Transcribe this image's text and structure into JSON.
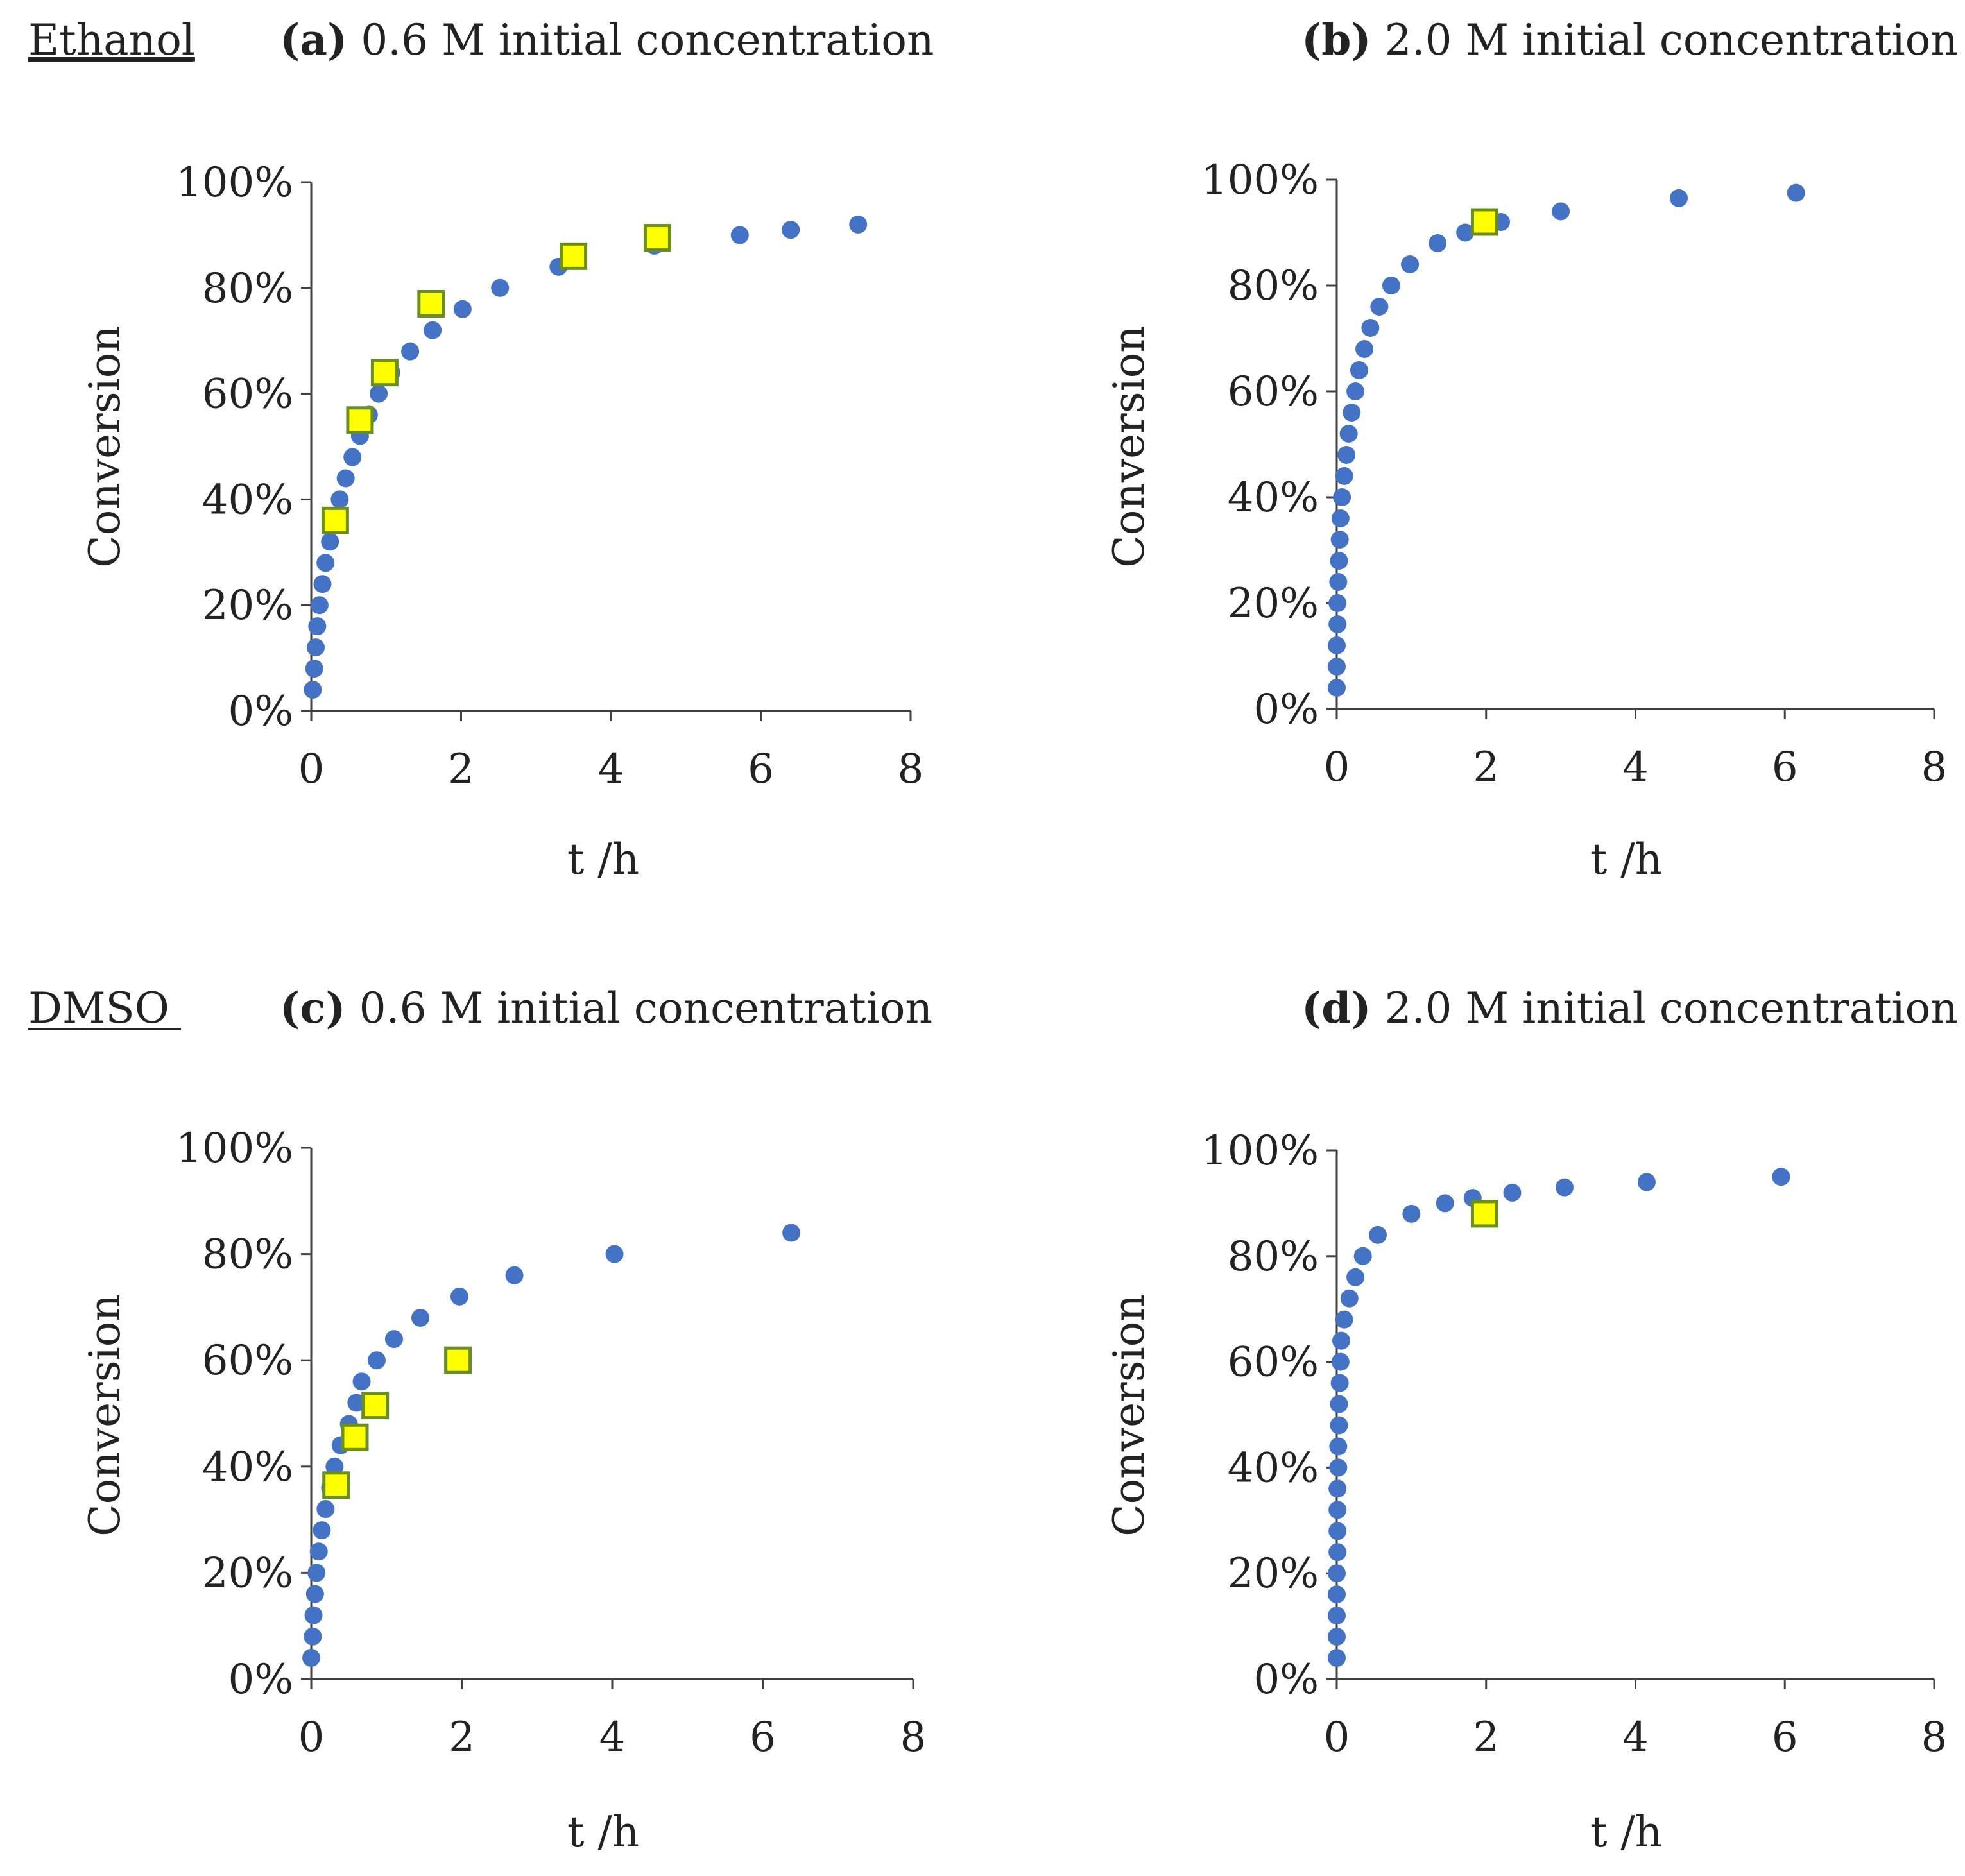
{
  "colors": {
    "model": "#4472C4",
    "experiment_fill": "#FFFF00",
    "experiment_stroke": "#6B8E23",
    "axis": "#404040"
  },
  "legend_semantics": {
    "model_marker": "circle",
    "experiment_marker": "square"
  },
  "rows": [
    {
      "label": "Ethanol"
    },
    {
      "label": "DMSO"
    }
  ],
  "chart_data": [
    {
      "type": "scatter",
      "panel": "a",
      "title_letter": "(a)",
      "title_text": " 0.6 M initial concentration",
      "xlabel": "t /h",
      "ylabel": "Conversion",
      "xlim": [
        0,
        8
      ],
      "ylim": [
        0,
        100
      ],
      "xticks": [
        "0",
        "2",
        "4",
        "6",
        "8"
      ],
      "yticks": [
        "0%",
        "20%",
        "40%",
        "60%",
        "80%",
        "100%"
      ],
      "series": [
        {
          "name": "model",
          "marker": "circle",
          "points": [
            [
              0.02,
              4
            ],
            [
              0.04,
              8
            ],
            [
              0.06,
              12
            ],
            [
              0.08,
              16
            ],
            [
              0.11,
              20
            ],
            [
              0.15,
              24
            ],
            [
              0.19,
              28
            ],
            [
              0.25,
              32
            ],
            [
              0.3,
              36
            ],
            [
              0.38,
              40
            ],
            [
              0.46,
              44
            ],
            [
              0.55,
              48
            ],
            [
              0.65,
              52
            ],
            [
              0.77,
              56
            ],
            [
              0.9,
              60
            ],
            [
              1.07,
              64
            ],
            [
              1.32,
              68
            ],
            [
              1.62,
              72
            ],
            [
              2.02,
              76
            ],
            [
              2.52,
              80
            ],
            [
              3.3,
              84
            ],
            [
              3.52,
              86
            ],
            [
              4.58,
              88
            ],
            [
              5.72,
              90
            ],
            [
              6.4,
              91
            ],
            [
              7.3,
              92
            ]
          ]
        },
        {
          "name": "experiment",
          "marker": "square",
          "points": [
            [
              0.32,
              36
            ],
            [
              0.65,
              55
            ],
            [
              0.98,
              64
            ],
            [
              1.6,
              77
            ],
            [
              3.5,
              86
            ],
            [
              4.62,
              89.5
            ]
          ]
        }
      ]
    },
    {
      "type": "scatter",
      "panel": "b",
      "title_letter": "(b)",
      "title_text": " 2.0 M initial concentration",
      "xlabel": "t /h",
      "ylabel": "Conversion",
      "xlim": [
        0,
        8
      ],
      "ylim": [
        0,
        100
      ],
      "xticks": [
        "0",
        "2",
        "4",
        "6",
        "8"
      ],
      "yticks": [
        "0%",
        "20%",
        "40%",
        "60%",
        "80%",
        "100%"
      ],
      "series": [
        {
          "name": "model",
          "marker": "circle",
          "points": [
            [
              0.0,
              4
            ],
            [
              0.0,
              8
            ],
            [
              0.0,
              12
            ],
            [
              0.01,
              16
            ],
            [
              0.01,
              20
            ],
            [
              0.02,
              24
            ],
            [
              0.03,
              28
            ],
            [
              0.04,
              32
            ],
            [
              0.05,
              36
            ],
            [
              0.07,
              40
            ],
            [
              0.1,
              44
            ],
            [
              0.13,
              48
            ],
            [
              0.16,
              52
            ],
            [
              0.2,
              56
            ],
            [
              0.25,
              60
            ],
            [
              0.3,
              64
            ],
            [
              0.37,
              68
            ],
            [
              0.45,
              72
            ],
            [
              0.57,
              76
            ],
            [
              0.73,
              80
            ],
            [
              0.98,
              84
            ],
            [
              1.35,
              88
            ],
            [
              1.72,
              90
            ],
            [
              2.2,
              92
            ],
            [
              3.0,
              94
            ],
            [
              4.58,
              96.5
            ],
            [
              6.15,
              97.5
            ]
          ]
        },
        {
          "name": "experiment",
          "marker": "square",
          "points": [
            [
              1.98,
              92
            ]
          ]
        }
      ]
    },
    {
      "type": "scatter",
      "panel": "c",
      "title_letter": "(c)",
      "title_text": " 0.6 M initial concentration",
      "xlabel": "t /h",
      "ylabel": "Conversion",
      "xlim": [
        0,
        8
      ],
      "ylim": [
        0,
        100
      ],
      "xticks": [
        "0",
        "2",
        "4",
        "6",
        "8"
      ],
      "yticks": [
        "0%",
        "20%",
        "40%",
        "60%",
        "80%",
        "100%"
      ],
      "series": [
        {
          "name": "model",
          "marker": "circle",
          "points": [
            [
              0.0,
              4
            ],
            [
              0.02,
              8
            ],
            [
              0.03,
              12
            ],
            [
              0.05,
              16
            ],
            [
              0.07,
              20
            ],
            [
              0.1,
              24
            ],
            [
              0.14,
              28
            ],
            [
              0.19,
              32
            ],
            [
              0.25,
              36
            ],
            [
              0.31,
              40
            ],
            [
              0.39,
              44
            ],
            [
              0.5,
              48
            ],
            [
              0.6,
              52
            ],
            [
              0.67,
              56
            ],
            [
              0.87,
              60
            ],
            [
              1.1,
              64
            ],
            [
              1.45,
              68
            ],
            [
              1.97,
              72
            ],
            [
              2.7,
              76
            ],
            [
              4.03,
              80
            ],
            [
              6.38,
              84
            ]
          ]
        },
        {
          "name": "experiment",
          "marker": "square",
          "points": [
            [
              0.33,
              36.5
            ],
            [
              0.58,
              45.5
            ],
            [
              0.85,
              51.5
            ],
            [
              1.95,
              60
            ]
          ]
        }
      ]
    },
    {
      "type": "scatter",
      "panel": "d",
      "title_letter": "(d)",
      "title_text": " 2.0 M initial concentration",
      "xlabel": "t /h",
      "ylabel": "Conversion",
      "xlim": [
        0,
        8
      ],
      "ylim": [
        0,
        100
      ],
      "xticks": [
        "0",
        "2",
        "4",
        "6",
        "8"
      ],
      "yticks": [
        "0%",
        "20%",
        "40%",
        "60%",
        "80%",
        "100%"
      ],
      "series": [
        {
          "name": "model",
          "marker": "circle",
          "points": [
            [
              0.0,
              4
            ],
            [
              0.0,
              8
            ],
            [
              0.0,
              12
            ],
            [
              0.0,
              16
            ],
            [
              0.0,
              20
            ],
            [
              0.01,
              24
            ],
            [
              0.01,
              28
            ],
            [
              0.01,
              32
            ],
            [
              0.01,
              36
            ],
            [
              0.02,
              40
            ],
            [
              0.02,
              44
            ],
            [
              0.03,
              48
            ],
            [
              0.03,
              52
            ],
            [
              0.04,
              56
            ],
            [
              0.05,
              60
            ],
            [
              0.06,
              64
            ],
            [
              0.1,
              68
            ],
            [
              0.17,
              72
            ],
            [
              0.25,
              76
            ],
            [
              0.35,
              80
            ],
            [
              0.55,
              84
            ],
            [
              1.0,
              88
            ],
            [
              1.45,
              90
            ],
            [
              1.82,
              91
            ],
            [
              2.35,
              92
            ],
            [
              3.05,
              93
            ],
            [
              4.15,
              94
            ],
            [
              5.95,
              95
            ]
          ]
        },
        {
          "name": "experiment",
          "marker": "square",
          "points": [
            [
              1.98,
              88
            ]
          ]
        }
      ]
    }
  ]
}
